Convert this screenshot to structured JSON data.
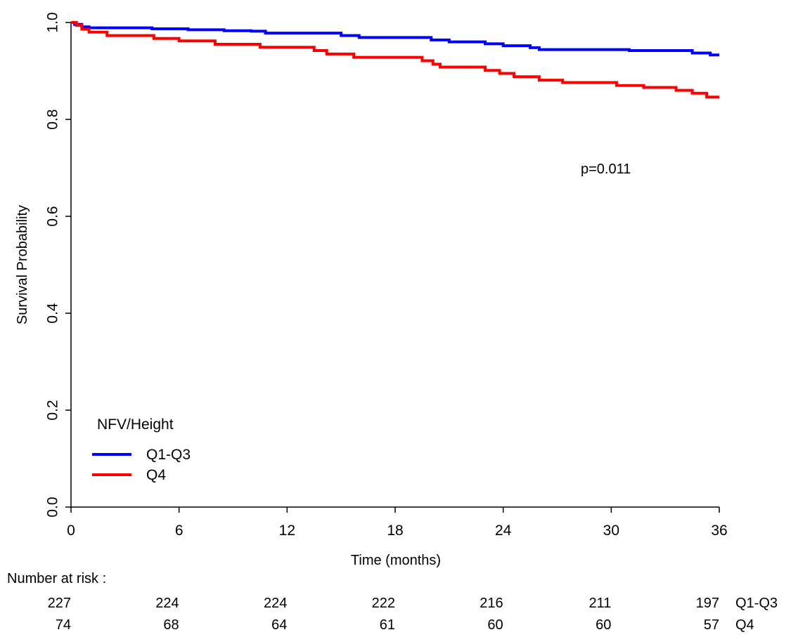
{
  "chart_data": {
    "type": "line",
    "subtype": "kaplan-meier step",
    "title": "",
    "xlabel": "Time (months)",
    "ylabel": "Survival Probability",
    "xlim": [
      0,
      36
    ],
    "ylim": [
      0.0,
      1.0
    ],
    "xticks": [
      0,
      6,
      12,
      18,
      24,
      30,
      36
    ],
    "yticks": [
      "0.0",
      "0.2",
      "0.4",
      "0.6",
      "0.8",
      "1.0"
    ],
    "grid": false,
    "annotation": "p=0.011",
    "legend": {
      "title": "NFV/Height",
      "placement": "bottom-left"
    },
    "series": [
      {
        "name": "Q1-Q3",
        "color": "#0000ff",
        "steps": [
          [
            0,
            1.0
          ],
          [
            0.2,
            0.996
          ],
          [
            0.6,
            0.991
          ],
          [
            1.0,
            0.989
          ],
          [
            4.5,
            0.987
          ],
          [
            6.5,
            0.985
          ],
          [
            8.5,
            0.983
          ],
          [
            10,
            0.982
          ],
          [
            10.8,
            0.978
          ],
          [
            15,
            0.973
          ],
          [
            16,
            0.969
          ],
          [
            20,
            0.964
          ],
          [
            21,
            0.96
          ],
          [
            23,
            0.956
          ],
          [
            24,
            0.952
          ],
          [
            25.5,
            0.948
          ],
          [
            26,
            0.944
          ],
          [
            31,
            0.942
          ],
          [
            34.5,
            0.937
          ],
          [
            35.5,
            0.933
          ],
          [
            36,
            0.933
          ]
        ]
      },
      {
        "name": "Q4",
        "color": "#ff0000",
        "steps": [
          [
            0,
            1.0
          ],
          [
            0.3,
            0.994
          ],
          [
            0.6,
            0.986
          ],
          [
            1.0,
            0.98
          ],
          [
            2.0,
            0.973
          ],
          [
            4.6,
            0.967
          ],
          [
            6.0,
            0.962
          ],
          [
            8.0,
            0.955
          ],
          [
            10.5,
            0.949
          ],
          [
            13.5,
            0.942
          ],
          [
            14.2,
            0.935
          ],
          [
            15.7,
            0.928
          ],
          [
            19.5,
            0.921
          ],
          [
            20.1,
            0.914
          ],
          [
            20.5,
            0.908
          ],
          [
            23,
            0.901
          ],
          [
            23.8,
            0.895
          ],
          [
            24.6,
            0.888
          ],
          [
            26,
            0.881
          ],
          [
            27.3,
            0.876
          ],
          [
            30.3,
            0.87
          ],
          [
            31.8,
            0.866
          ],
          [
            33.6,
            0.86
          ],
          [
            34.5,
            0.854
          ],
          [
            35.3,
            0.846
          ],
          [
            36,
            0.846
          ]
        ]
      }
    ],
    "risk_table": {
      "title": "Number at risk :",
      "times": [
        0,
        6,
        12,
        18,
        24,
        30,
        36
      ],
      "rows": [
        {
          "label": "Q1-Q3",
          "values": [
            "227",
            "224",
            "224",
            "222",
            "216",
            "211",
            "197"
          ]
        },
        {
          "label": "Q4",
          "values": [
            "74",
            "68",
            "64",
            "61",
            "60",
            "60",
            "57"
          ]
        }
      ]
    }
  }
}
